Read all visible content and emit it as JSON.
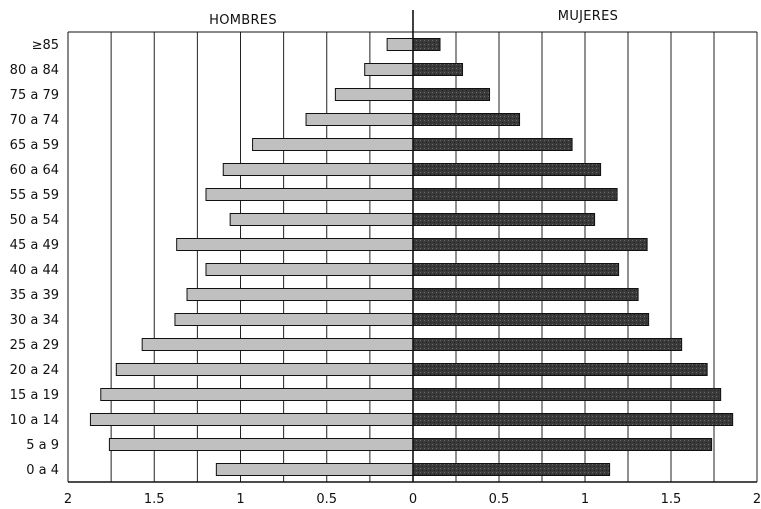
{
  "chart_data": {
    "type": "bar",
    "orientation": "horizontal",
    "layout": "population-pyramid",
    "title": "",
    "xlabel": "",
    "ylabel": "",
    "categories": [
      "≥85",
      "80 a 84",
      "75 a 79",
      "70 a 74",
      "65 a 59",
      "60 a 64",
      "55 a 59",
      "50 a 54",
      "45 a 49",
      "40 a 44",
      "35 a 39",
      "30 a 34",
      "25 a 29",
      "20 a 24",
      "15 a 19",
      "10 a 14",
      "5 a 9",
      "0 a 4"
    ],
    "series": [
      {
        "name": "HOMBRES",
        "color": "#c0c0c0",
        "values": [
          0.15,
          0.28,
          0.45,
          0.62,
          0.93,
          1.1,
          1.2,
          1.06,
          1.37,
          1.2,
          1.31,
          1.38,
          1.57,
          1.72,
          1.81,
          1.87,
          1.76,
          1.14
        ]
      },
      {
        "name": "MUJERES",
        "color": "#3a3a3a",
        "values": [
          0.18,
          0.33,
          0.51,
          0.71,
          1.06,
          1.25,
          1.36,
          1.21,
          1.56,
          1.37,
          1.5,
          1.57,
          1.79,
          1.96,
          2.05,
          2.13,
          1.99,
          1.31
        ]
      }
    ],
    "left_axis": {
      "ticks": [
        2,
        1.5,
        1,
        0.5,
        0
      ],
      "tick_labels": [
        "2",
        "1.5",
        "1",
        "0.5",
        "0"
      ],
      "xlim": [
        0,
        2.05
      ]
    },
    "right_axis": {
      "ticks": [
        0,
        0.5,
        1,
        1.5,
        2
      ],
      "tick_labels": [
        "0",
        "0.5",
        "1",
        "1.5",
        "2"
      ],
      "xlim": [
        0,
        2.13
      ]
    },
    "grid": true
  }
}
